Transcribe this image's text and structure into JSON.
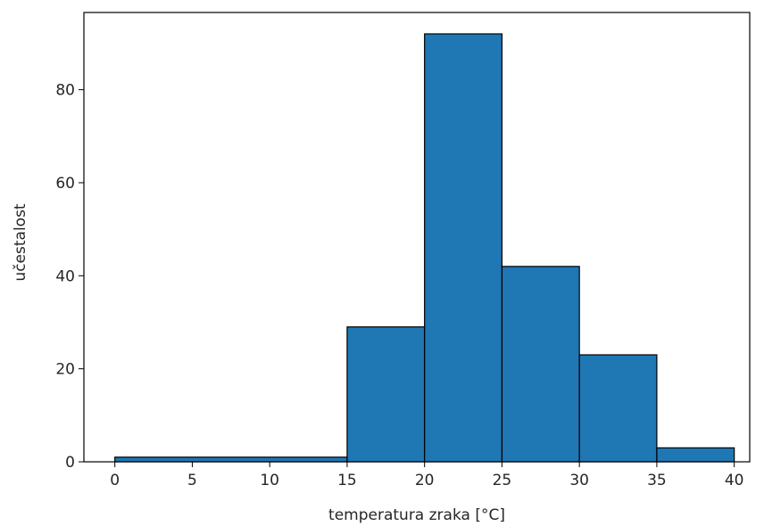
{
  "chart_data": {
    "type": "bar",
    "subtype": "histogram",
    "bins": [
      {
        "start": 0,
        "end": 15,
        "count": 1
      },
      {
        "start": 15,
        "end": 20,
        "count": 29
      },
      {
        "start": 20,
        "end": 25,
        "count": 92
      },
      {
        "start": 25,
        "end": 30,
        "count": 42
      },
      {
        "start": 30,
        "end": 35,
        "count": 23
      },
      {
        "start": 35,
        "end": 40,
        "count": 3
      }
    ],
    "xlabel": "temperatura zraka [°C]",
    "ylabel": "učestalost",
    "xlim": [
      -2,
      41
    ],
    "ylim": [
      0,
      96.6
    ],
    "xticks": [
      0,
      5,
      10,
      15,
      20,
      25,
      30,
      35,
      40
    ],
    "yticks": [
      0,
      20,
      40,
      60,
      80
    ],
    "bar_color": "#1f77b4",
    "edge_color": "#000000",
    "grid": false
  }
}
